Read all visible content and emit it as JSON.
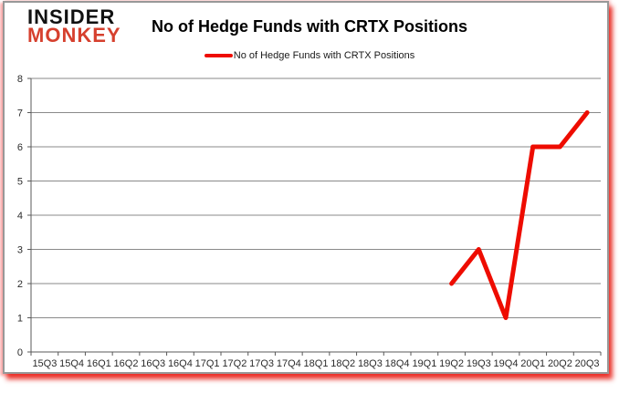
{
  "brand": {
    "line1": "INSIDER",
    "line2": "MONKEY",
    "color1": "#111111",
    "color2": "#d6402e"
  },
  "header": {
    "title": "No of Hedge Funds with CRTX Positions"
  },
  "legend": {
    "label": "No of Hedge Funds with CRTX Positions",
    "swatch_color": "#ee0c00"
  },
  "chart_data": {
    "type": "line",
    "title": "No of Hedge Funds with CRTX Positions",
    "categories": [
      "15Q3",
      "15Q4",
      "16Q1",
      "16Q2",
      "16Q3",
      "16Q4",
      "17Q1",
      "17Q2",
      "17Q3",
      "17Q4",
      "18Q1",
      "18Q2",
      "18Q3",
      "18Q4",
      "19Q1",
      "19Q2",
      "19Q3",
      "19Q4",
      "20Q1",
      "20Q2",
      "20Q3"
    ],
    "series": [
      {
        "name": "No of Hedge Funds with CRTX Positions",
        "color": "#ee0c00",
        "values": [
          null,
          null,
          null,
          null,
          null,
          null,
          null,
          null,
          null,
          null,
          null,
          null,
          null,
          null,
          null,
          2,
          3,
          1,
          6,
          6,
          7
        ]
      }
    ],
    "xlabel": "",
    "ylabel": "",
    "ylim": [
      0,
      8
    ],
    "ytick_step": 1,
    "grid": true,
    "legend_position": "top",
    "colors": {
      "gridline": "#8a8a8a",
      "axis": "#595959",
      "tick_label": "#2b2b2b"
    }
  }
}
